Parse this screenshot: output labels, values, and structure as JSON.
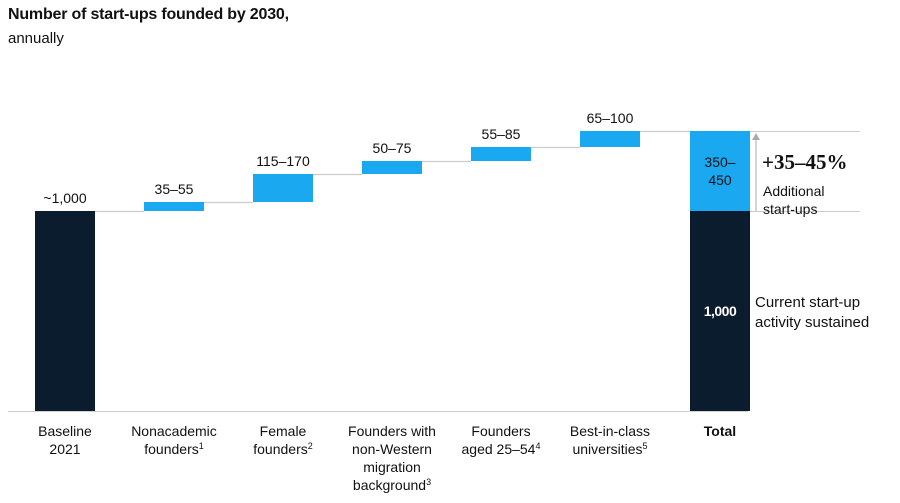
{
  "title": "Number of start-ups founded by 2030,",
  "subtitle": "annually",
  "colors": {
    "dark": "#0b1c2e",
    "accent": "#1aa8f0",
    "connector": "#cccccc",
    "arrow": "#aaaaaa"
  },
  "chart_data": {
    "type": "bar",
    "subtype": "waterfall",
    "categories": [
      {
        "lines": [
          "Baseline",
          "2021"
        ],
        "sup": "",
        "bold": false
      },
      {
        "lines": [
          "Nonacademic",
          "founders"
        ],
        "sup": "1",
        "bold": false
      },
      {
        "lines": [
          "Female",
          "founders"
        ],
        "sup": "2",
        "bold": false
      },
      {
        "lines": [
          "Founders with",
          "non-Western",
          "migration",
          "background"
        ],
        "sup": "3",
        "bold": false
      },
      {
        "lines": [
          "Founders",
          "aged 25–54"
        ],
        "sup": "4",
        "bold": false
      },
      {
        "lines": [
          "Best-in-class",
          "universities"
        ],
        "sup": "5",
        "bold": false
      },
      {
        "lines": [
          "Total"
        ],
        "sup": "",
        "bold": true
      }
    ],
    "bars": [
      {
        "kind": "base",
        "start": 0,
        "end": 1000,
        "label": "~1,000"
      },
      {
        "kind": "delta",
        "start": 1000,
        "end": 1045,
        "label": "35–55"
      },
      {
        "kind": "delta",
        "start": 1045,
        "end": 1185,
        "label": "115–170"
      },
      {
        "kind": "delta",
        "start": 1185,
        "end": 1250,
        "label": "50–75"
      },
      {
        "kind": "delta",
        "start": 1250,
        "end": 1320,
        "label": "55–85"
      },
      {
        "kind": "delta",
        "start": 1320,
        "end": 1400,
        "label": "65–100"
      },
      {
        "kind": "total",
        "base": 1000,
        "added": 400,
        "base_label": "1,000",
        "added_label": "350–450"
      }
    ],
    "ylim": [
      0,
      1500
    ],
    "total_annotation": {
      "headline": "+35–45%",
      "added_text": [
        "Additional",
        "start-ups"
      ],
      "base_text": [
        "Current start-up",
        "activity sustained"
      ]
    }
  }
}
